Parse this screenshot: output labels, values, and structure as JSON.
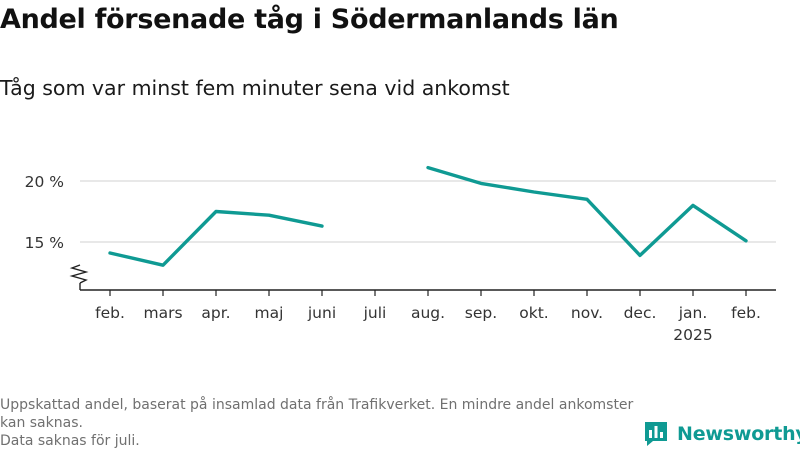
{
  "title": "Andel försenade tåg i Södermanlands län",
  "subtitle": "Tåg som var minst fem minuter sena vid ankomst",
  "chart_data": {
    "type": "line",
    "categories": [
      "feb.",
      "mars",
      "apr.",
      "maj",
      "juni",
      "juli",
      "aug.",
      "sep.",
      "okt.",
      "nov.",
      "dec.",
      "jan.",
      "feb."
    ],
    "category_sublabels": [
      "",
      "",
      "",
      "",
      "",
      "",
      "",
      "",
      "",
      "",
      "",
      "2025",
      ""
    ],
    "series": [
      {
        "values": [
          14.1,
          13.1,
          17.5,
          17.2,
          16.3,
          null,
          21.1,
          19.8,
          19.1,
          18.5,
          13.9,
          18.0,
          15.1
        ],
        "color": "#0f9a93"
      }
    ],
    "ylim": [
      11,
      21.5
    ],
    "yticks": [
      15,
      20
    ],
    "ytick_labels": [
      "15 %",
      "20 %"
    ],
    "axis_break": true,
    "grid": true
  },
  "footer": {
    "note1": "Uppskattad andel, baserat på insamlad data från Trafikverket. En mindre andel ankomster kan saknas.",
    "note2": "Data saknas för juli."
  },
  "brand": {
    "name": "Newsworthy",
    "icon": "newsworthy-logo-icon",
    "color": "#0f9a93"
  }
}
